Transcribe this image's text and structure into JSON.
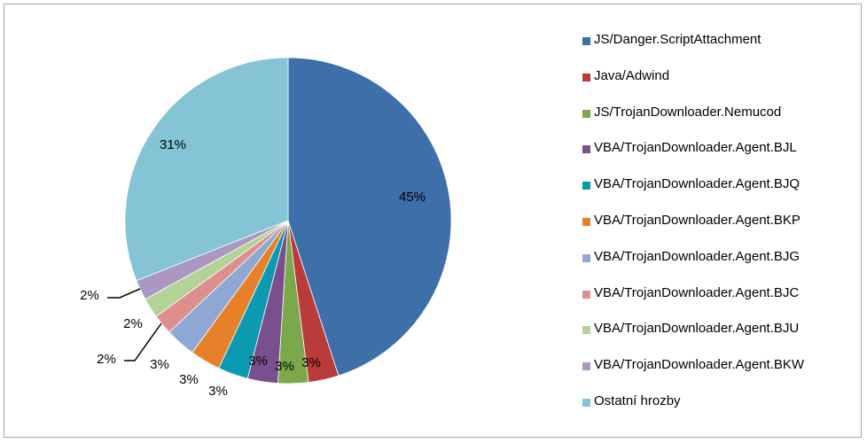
{
  "chart_data": {
    "type": "pie",
    "title": "",
    "start": "top",
    "direction": "clockwise",
    "slices": [
      {
        "label": "JS/Danger.ScriptAttachment",
        "value": 45,
        "display": "45%",
        "color": "#3d6fa9"
      },
      {
        "label": "Java/Adwind",
        "value": 3,
        "display": "3%",
        "color": "#b93b3b"
      },
      {
        "label": "JS/TrojanDownloader.Nemucod",
        "value": 3,
        "display": "3%",
        "color": "#7ba84a"
      },
      {
        "label": "VBA/TrojanDownloader.Agent.BJL",
        "value": 3,
        "display": "3%",
        "color": "#7a4f8e"
      },
      {
        "label": "VBA/TrojanDownloader.Agent.BJQ",
        "value": 3,
        "display": "3%",
        "color": "#0c9ab3"
      },
      {
        "label": "VBA/TrojanDownloader.Agent.BKP",
        "value": 3,
        "display": "3%",
        "color": "#e6812a"
      },
      {
        "label": "VBA/TrojanDownloader.Agent.BJG",
        "value": 3,
        "display": "3%",
        "color": "#8ea8d3"
      },
      {
        "label": "VBA/TrojanDownloader.Agent.BJC",
        "value": 2,
        "display": "2%",
        "color": "#dd8f8d"
      },
      {
        "label": "VBA/TrojanDownloader.Agent.BJU",
        "value": 2,
        "display": "2%",
        "color": "#b3d295"
      },
      {
        "label": "VBA/TrojanDownloader.Agent.BKW",
        "value": 2,
        "display": "2%",
        "color": "#ab97c2"
      },
      {
        "label": "Ostatní hrozby",
        "value": 31,
        "display": "31%",
        "color": "#84c4d5"
      }
    ],
    "legend_position": "right"
  }
}
